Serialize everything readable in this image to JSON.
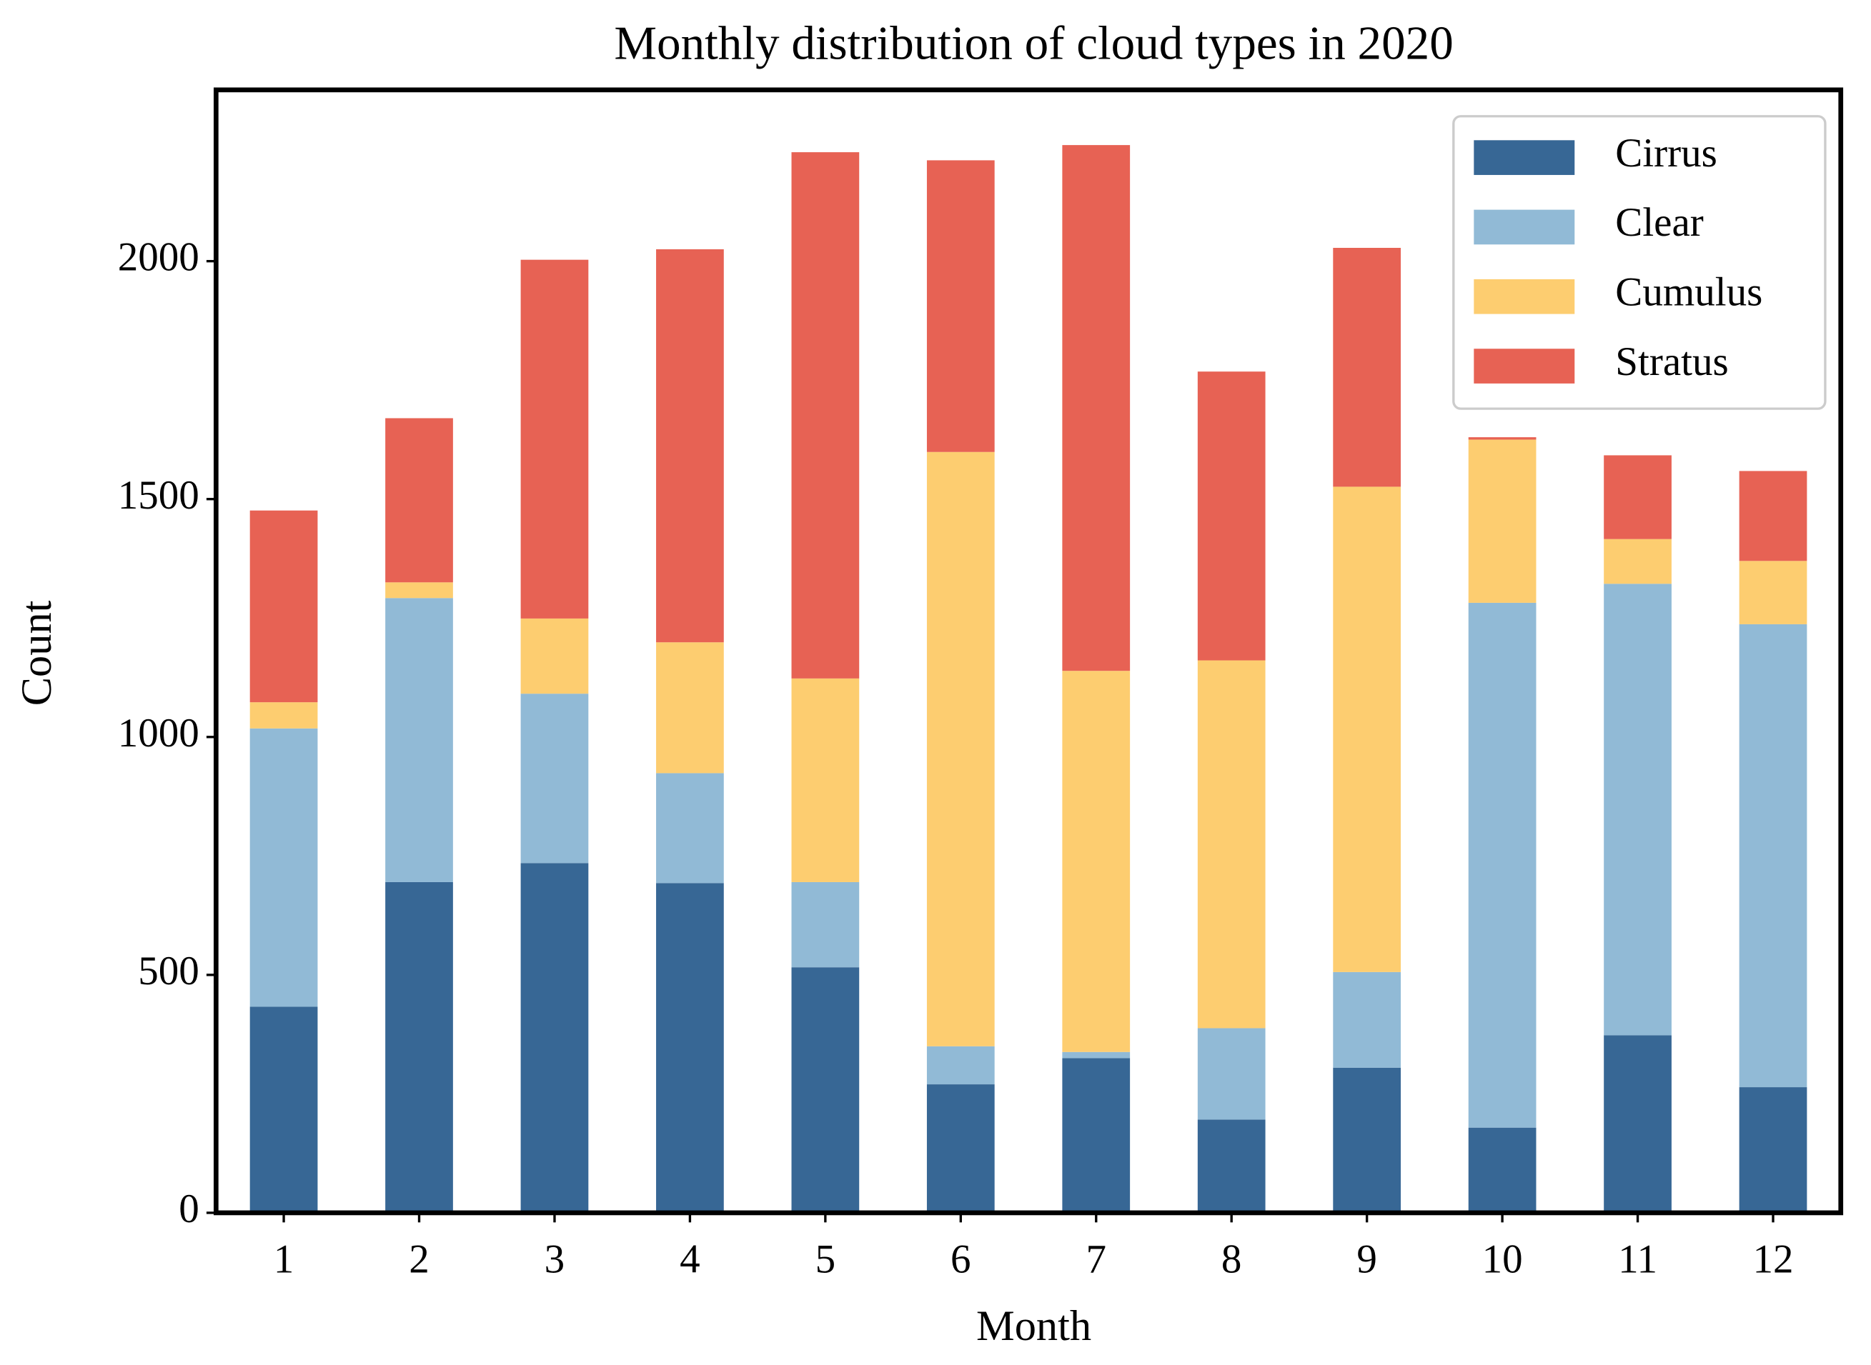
{
  "chart_data": {
    "type": "stacked_bar",
    "title": "Monthly distribution of cloud types in 2020",
    "x_label": "Month",
    "y_label": "Count",
    "categories": [
      "1",
      "2",
      "3",
      "4",
      "5",
      "6",
      "7",
      "8",
      "9",
      "10",
      "11",
      "12"
    ],
    "series": [
      {
        "name": "Cirrus",
        "color": "#376795",
        "values": [
          433,
          695,
          735,
          693,
          516,
          270,
          325,
          196,
          305,
          179,
          373,
          264
        ]
      },
      {
        "name": "Clear",
        "color": "#91bad6",
        "values": [
          585,
          597,
          356,
          231,
          179,
          80,
          13,
          192,
          201,
          1103,
          949,
          973
        ]
      },
      {
        "name": "Cumulus",
        "color": "#fdcd70",
        "values": [
          55,
          33,
          158,
          275,
          428,
          1249,
          801,
          773,
          1020,
          343,
          94,
          133
        ]
      },
      {
        "name": "Stratus",
        "color": "#e76254",
        "values": [
          403,
          345,
          754,
          826,
          1106,
          613,
          1105,
          607,
          502,
          5,
          176,
          189
        ]
      }
    ],
    "ylim": [
      0,
      2360
    ],
    "yticks": [
      0,
      500,
      1000,
      1500,
      2000
    ],
    "legend": "upper right"
  }
}
